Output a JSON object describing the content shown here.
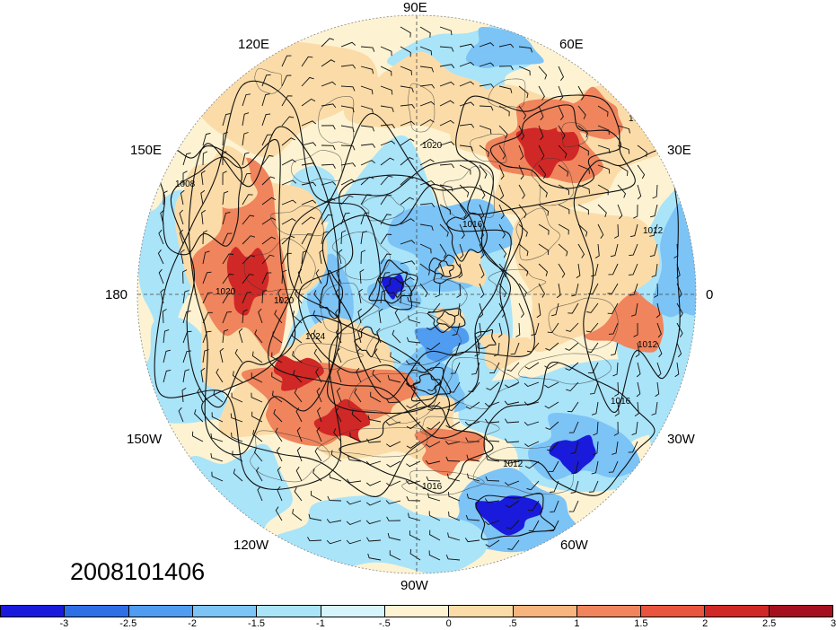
{
  "timestamp": "2008101406",
  "lon_labels": {
    "e90": "90E",
    "e60": "60E",
    "e30": "30E",
    "zero": "0",
    "w30": "30W",
    "w60": "60W",
    "w90": "90W",
    "w120": "120W",
    "w150": "150W",
    "d180": "180",
    "e150": "150E",
    "e120": "120E"
  },
  "contour_labels": [
    "1020",
    "1016",
    "1012",
    "1008",
    "1024",
    "1016",
    "1012",
    "1020",
    "1016",
    "1020",
    "1016",
    "1012"
  ],
  "colorbar": {
    "colors": [
      "#1a1adc",
      "#2f6fe6",
      "#4f9cf0",
      "#7cc3f6",
      "#a9e4f9",
      "#d6f4fb",
      "#fdf3d2",
      "#fbdca8",
      "#f7b47d",
      "#f0845c",
      "#e8543d",
      "#d02826",
      "#a5101e"
    ],
    "labels": [
      "-3",
      "-2.5",
      "-2",
      "-1.5",
      "-1",
      "-.5",
      "0",
      ".5",
      "1",
      "1.5",
      "2",
      "2.5",
      "3"
    ]
  },
  "map_colors": {
    "background": "#fdf3d2",
    "neg_light": "#a9e4f9",
    "neg_mid": "#7cc3f6",
    "neg_strong": "#4f9cf0",
    "neg_deep": "#1a1adc",
    "pos_light": "#fbdca8",
    "pos_mid": "#f0845c",
    "pos_strong": "#d02826"
  }
}
